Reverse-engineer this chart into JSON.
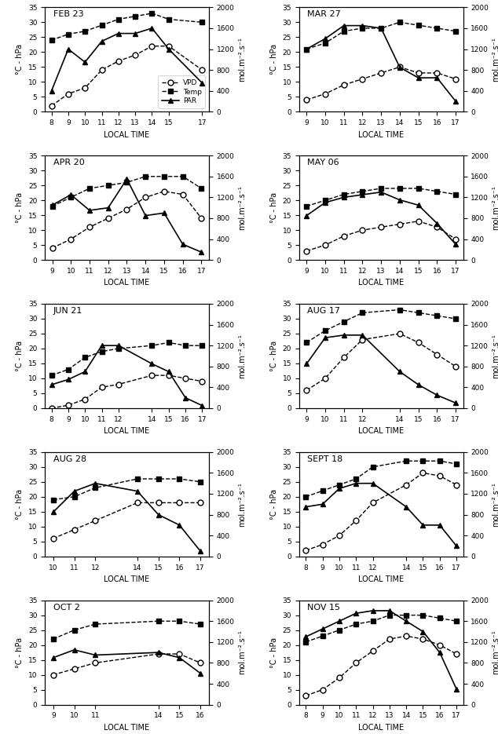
{
  "panels": [
    {
      "title": "FEB 23",
      "x_ticks": [
        8,
        9,
        10,
        11,
        12,
        13,
        14,
        15,
        17
      ],
      "vpd_x": [
        8,
        9,
        10,
        11,
        12,
        13,
        14,
        15,
        17
      ],
      "vpd_y": [
        2,
        6,
        8,
        14,
        17,
        19,
        22,
        22,
        14
      ],
      "temp_x": [
        8,
        9,
        10,
        11,
        12,
        13,
        14,
        15,
        17
      ],
      "temp_y": [
        24,
        26,
        27,
        29,
        31,
        32,
        33,
        31,
        30
      ],
      "par_x": [
        8,
        9,
        10,
        11,
        12,
        13,
        14,
        15,
        17
      ],
      "par_y": [
        400,
        1200,
        950,
        1350,
        1500,
        1500,
        1600,
        1200,
        550
      ],
      "legend": true
    },
    {
      "title": "MAR 27",
      "x_ticks": [
        9,
        10,
        11,
        12,
        13,
        14,
        15,
        16,
        17
      ],
      "vpd_x": [
        9,
        10,
        11,
        12,
        13,
        14,
        15,
        16,
        17
      ],
      "vpd_y": [
        4,
        6,
        9,
        11,
        13,
        15,
        13,
        13,
        11
      ],
      "temp_x": [
        9,
        10,
        11,
        12,
        13,
        14,
        15,
        16,
        17
      ],
      "temp_y": [
        21,
        23,
        27,
        28,
        28,
        30,
        29,
        28,
        27
      ],
      "par_x": [
        9,
        10,
        11,
        12,
        13,
        14,
        15,
        16,
        17
      ],
      "par_y": [
        1200,
        1400,
        1650,
        1650,
        1600,
        850,
        650,
        650,
        200
      ],
      "legend": false
    },
    {
      "title": "APR 20",
      "x_ticks": [
        9,
        10,
        11,
        12,
        13,
        14,
        15,
        16,
        17
      ],
      "vpd_x": [
        9,
        10,
        11,
        12,
        13,
        14,
        15,
        16,
        17
      ],
      "vpd_y": [
        4,
        7,
        11,
        14,
        17,
        21,
        23,
        22,
        14
      ],
      "temp_x": [
        9,
        10,
        11,
        12,
        13,
        14,
        15,
        16,
        17
      ],
      "temp_y": [
        18,
        21,
        24,
        25,
        26,
        28,
        28,
        28,
        24
      ],
      "par_x": [
        9,
        10,
        11,
        12,
        13,
        14,
        15,
        16,
        17
      ],
      "par_y": [
        1050,
        1250,
        950,
        1000,
        1550,
        850,
        900,
        300,
        150
      ],
      "legend": false
    },
    {
      "title": "MAY 06",
      "x_ticks": [
        9,
        10,
        11,
        12,
        13,
        14,
        15,
        16,
        17
      ],
      "vpd_x": [
        9,
        10,
        11,
        12,
        13,
        14,
        15,
        16,
        17
      ],
      "vpd_y": [
        3,
        5,
        8,
        10,
        11,
        12,
        13,
        11,
        7
      ],
      "temp_x": [
        9,
        10,
        11,
        12,
        13,
        14,
        15,
        16,
        17
      ],
      "temp_y": [
        18,
        20,
        22,
        23,
        24,
        24,
        24,
        23,
        22
      ],
      "par_x": [
        9,
        10,
        11,
        12,
        13,
        14,
        15,
        16,
        17
      ],
      "par_y": [
        850,
        1100,
        1200,
        1250,
        1300,
        1150,
        1050,
        700,
        300
      ],
      "legend": false
    },
    {
      "title": "JUN 21",
      "x_ticks": [
        8,
        9,
        10,
        11,
        12,
        14,
        15,
        16,
        17
      ],
      "vpd_x": [
        8,
        9,
        10,
        11,
        12,
        14,
        15,
        16,
        17
      ],
      "vpd_y": [
        0,
        1,
        3,
        7,
        8,
        11,
        11,
        10,
        9
      ],
      "temp_x": [
        8,
        9,
        10,
        11,
        12,
        14,
        15,
        16,
        17
      ],
      "temp_y": [
        11,
        13,
        17,
        19,
        20,
        21,
        22,
        21,
        21
      ],
      "par_x": [
        8,
        9,
        10,
        11,
        12,
        14,
        15,
        16,
        17
      ],
      "par_y": [
        450,
        550,
        700,
        1200,
        1200,
        850,
        700,
        200,
        50
      ],
      "legend": false
    },
    {
      "title": "AUG 17",
      "x_ticks": [
        9,
        10,
        11,
        12,
        14,
        15,
        16,
        17
      ],
      "vpd_x": [
        9,
        10,
        11,
        12,
        14,
        15,
        16,
        17
      ],
      "vpd_y": [
        6,
        10,
        17,
        23,
        25,
        22,
        18,
        14
      ],
      "temp_x": [
        9,
        10,
        11,
        12,
        14,
        15,
        16,
        17
      ],
      "temp_y": [
        22,
        26,
        29,
        32,
        33,
        32,
        31,
        30
      ],
      "par_x": [
        9,
        10,
        11,
        12,
        14,
        15,
        16,
        17
      ],
      "par_y": [
        850,
        1350,
        1400,
        1400,
        700,
        450,
        250,
        100
      ],
      "legend": false
    },
    {
      "title": "AUG 28",
      "x_ticks": [
        10,
        11,
        12,
        14,
        15,
        16,
        17
      ],
      "vpd_x": [
        10,
        11,
        12,
        14,
        15,
        16,
        17
      ],
      "vpd_y": [
        6,
        9,
        12,
        18,
        18,
        18,
        18
      ],
      "temp_x": [
        10,
        11,
        12,
        14,
        15,
        16,
        17
      ],
      "temp_y": [
        19,
        20,
        23,
        26,
        26,
        26,
        25
      ],
      "par_x": [
        10,
        11,
        12,
        14,
        15,
        16,
        17
      ],
      "par_y": [
        850,
        1250,
        1400,
        1250,
        800,
        600,
        100
      ],
      "legend": false
    },
    {
      "title": "SEPT 18",
      "x_ticks": [
        8,
        9,
        10,
        11,
        12,
        14,
        15,
        16,
        17
      ],
      "vpd_x": [
        8,
        9,
        10,
        11,
        12,
        14,
        15,
        16,
        17
      ],
      "vpd_y": [
        2,
        4,
        7,
        12,
        18,
        24,
        28,
        27,
        24
      ],
      "temp_x": [
        8,
        9,
        10,
        11,
        12,
        14,
        15,
        16,
        17
      ],
      "temp_y": [
        20,
        22,
        24,
        26,
        30,
        32,
        32,
        32,
        31
      ],
      "par_x": [
        8,
        9,
        10,
        11,
        12,
        14,
        15,
        16,
        17
      ],
      "par_y": [
        950,
        1000,
        1300,
        1400,
        1400,
        950,
        600,
        600,
        200
      ],
      "legend": false
    },
    {
      "title": "OCT 2",
      "x_ticks": [
        9,
        10,
        11,
        14,
        15,
        16
      ],
      "vpd_x": [
        9,
        10,
        11,
        14,
        15,
        16
      ],
      "vpd_y": [
        10,
        12,
        14,
        17,
        17,
        14
      ],
      "temp_x": [
        9,
        10,
        11,
        14,
        15,
        16
      ],
      "temp_y": [
        22,
        25,
        27,
        28,
        28,
        27
      ],
      "par_x": [
        9,
        10,
        11,
        14,
        15,
        16
      ],
      "par_y": [
        900,
        1050,
        950,
        1000,
        900,
        600
      ],
      "legend": false
    },
    {
      "title": "NOV 15",
      "x_ticks": [
        8,
        9,
        10,
        11,
        12,
        13,
        14,
        15,
        16,
        17
      ],
      "vpd_x": [
        8,
        9,
        10,
        11,
        12,
        13,
        14,
        15,
        16,
        17
      ],
      "vpd_y": [
        3,
        5,
        9,
        14,
        18,
        22,
        23,
        22,
        20,
        17
      ],
      "temp_x": [
        8,
        9,
        10,
        11,
        12,
        13,
        14,
        15,
        16,
        17
      ],
      "temp_y": [
        21,
        23,
        25,
        27,
        28,
        30,
        30,
        30,
        29,
        28
      ],
      "par_x": [
        8,
        9,
        10,
        11,
        12,
        13,
        14,
        15,
        16,
        17
      ],
      "par_y": [
        1300,
        1450,
        1600,
        1750,
        1800,
        1800,
        1600,
        1400,
        1000,
        300
      ],
      "legend": false
    }
  ],
  "ylim_left": [
    0,
    35
  ],
  "ylim_right": [
    0,
    2000
  ],
  "yticks_left": [
    0,
    5,
    10,
    15,
    20,
    25,
    30,
    35
  ],
  "yticks_right": [
    0,
    400,
    800,
    1200,
    1600,
    2000
  ],
  "xlabel": "LOCAL TIME",
  "ylabel_left": "°C - hPa",
  "ylabel_right": "mol.m⁻².s⁻¹",
  "legend_labels": [
    "VPD",
    "Temp",
    "PAR"
  ]
}
